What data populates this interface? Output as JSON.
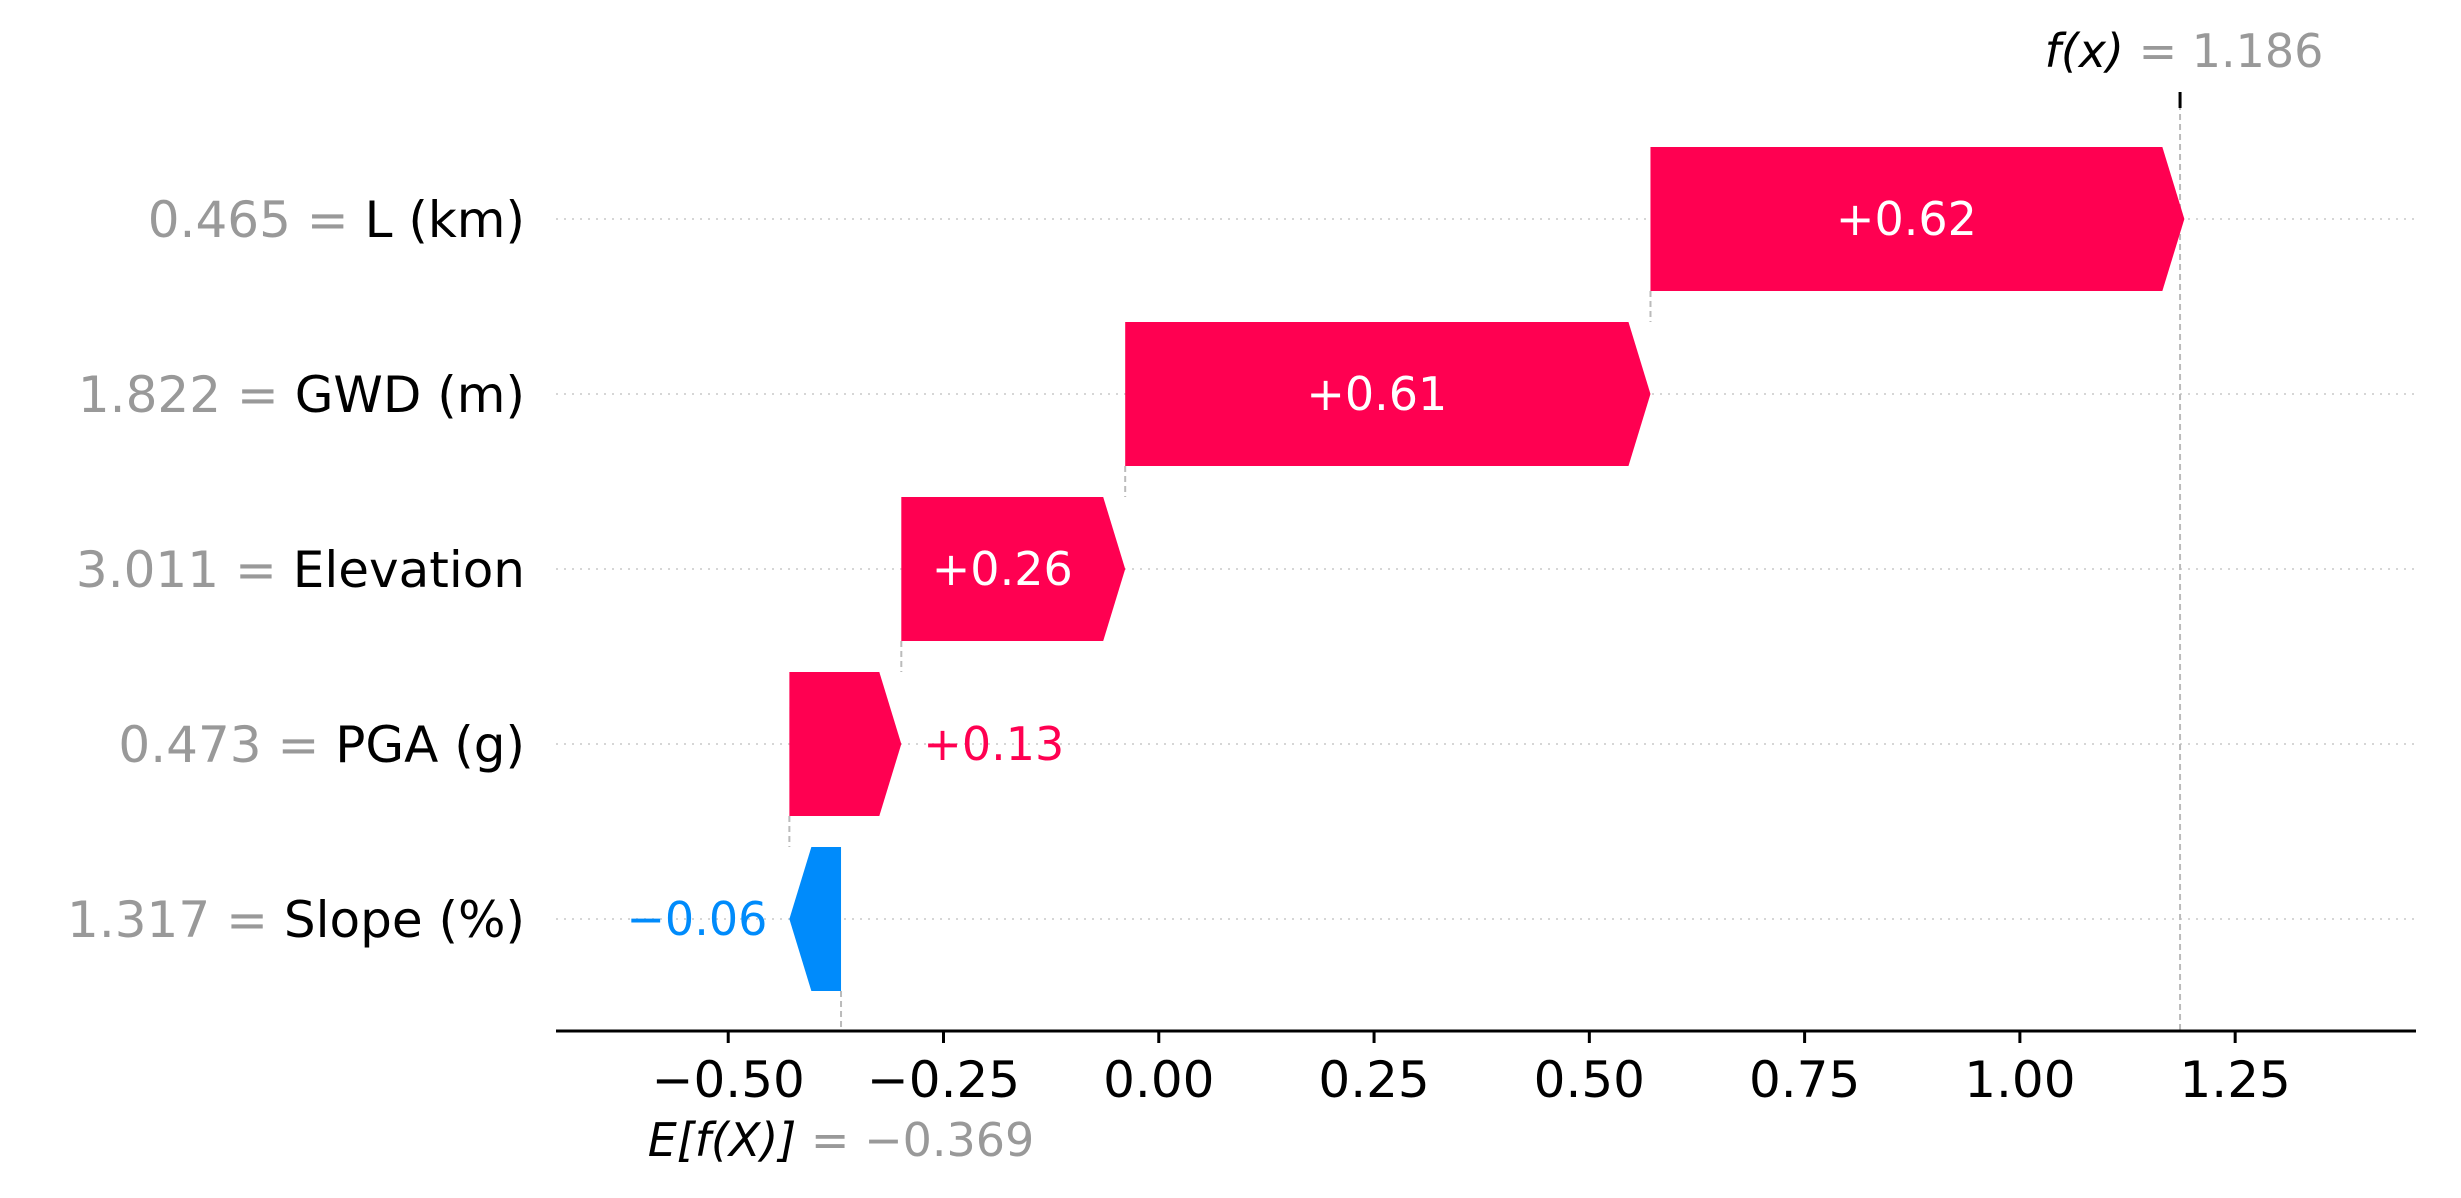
{
  "chart_data": {
    "type": "waterfall",
    "base_value": -0.369,
    "output_value": 1.186,
    "base_label": {
      "prefix": "E[f(X)]",
      "equals": " = ",
      "value": "−0.369"
    },
    "output_label": {
      "prefix": "f(x)",
      "equals": " = ",
      "value": "1.186"
    },
    "xlim": [
      -0.7,
      1.46
    ],
    "xticks": [
      -0.5,
      -0.25,
      0.0,
      0.25,
      0.5,
      0.75,
      1.0,
      1.25
    ],
    "xtick_labels": [
      "−0.50",
      "−0.25",
      "0.00",
      "0.25",
      "0.50",
      "0.75",
      "1.00",
      "1.25"
    ],
    "features": [
      {
        "value_text": "0.465",
        "name": "L (km)",
        "contribution": 0.62,
        "label": "+0.62"
      },
      {
        "value_text": "1.822",
        "name": "GWD (m)",
        "contribution": 0.61,
        "label": "+0.61"
      },
      {
        "value_text": "3.011",
        "name": "Elevation",
        "contribution": 0.26,
        "label": "+0.26"
      },
      {
        "value_text": "0.473",
        "name": "PGA (g)",
        "contribution": 0.13,
        "label": "+0.13"
      },
      {
        "value_text": "1.317",
        "name": "Slope (%)",
        "contribution": -0.06,
        "label": "−0.06"
      }
    ],
    "colors": {
      "positive": "#ff0051",
      "negative": "#008bfb",
      "positive_text": "#ff0051",
      "negative_text": "#008bfb",
      "inside_text": "#ffffff",
      "muted_text": "#999999"
    }
  }
}
